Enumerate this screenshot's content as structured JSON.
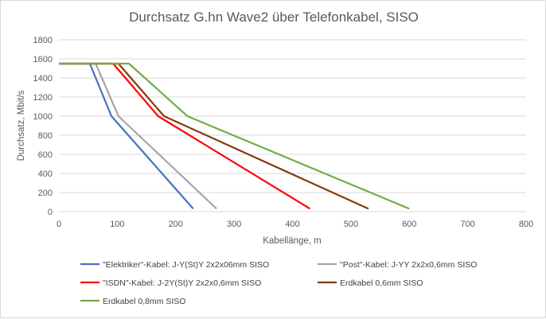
{
  "chart_data": {
    "type": "line",
    "title": "Durchsatz G.hn Wave2 über Telefonkabel, SISO",
    "xlabel": "Kabellänge, m",
    "ylabel": "Durchsatz, Mbit/s",
    "xlim": [
      0,
      800
    ],
    "ylim": [
      0,
      1800
    ],
    "xticks": [
      0,
      100,
      200,
      300,
      400,
      500,
      600,
      700,
      800
    ],
    "yticks": [
      0,
      200,
      400,
      600,
      800,
      1000,
      1200,
      1400,
      1600,
      1800
    ],
    "grid": true,
    "legend_position": "bottom",
    "series": [
      {
        "name": "\"Elektriker\"-Kabel: J-Y(St)Y 2x2x06mm SISO",
        "color": "#4472c4",
        "points": [
          [
            0,
            1550
          ],
          [
            53,
            1550
          ],
          [
            90,
            1000
          ],
          [
            230,
            30
          ]
        ]
      },
      {
        "name": "\"Post\"-Kabel: J-YY 2x2x0,6mm SISO",
        "color": "#a5a5a5",
        "points": [
          [
            0,
            1550
          ],
          [
            63,
            1550
          ],
          [
            102,
            1000
          ],
          [
            270,
            30
          ]
        ]
      },
      {
        "name": "\"ISDN\"-Kabel: J-2Y(St)Y 2x2x0,6mm SISO",
        "color": "#ff0000",
        "points": [
          [
            0,
            1550
          ],
          [
            93,
            1550
          ],
          [
            170,
            1000
          ],
          [
            430,
            30
          ]
        ]
      },
      {
        "name": "Erdkabel 0,6mm SISO",
        "color": "#843c0c",
        "points": [
          [
            0,
            1550
          ],
          [
            102,
            1550
          ],
          [
            180,
            1000
          ],
          [
            530,
            30
          ]
        ]
      },
      {
        "name": "Erdkabel 0,8mm SISO",
        "color": "#70ad47",
        "points": [
          [
            0,
            1550
          ],
          [
            120,
            1550
          ],
          [
            220,
            1000
          ],
          [
            600,
            30
          ]
        ]
      }
    ]
  }
}
